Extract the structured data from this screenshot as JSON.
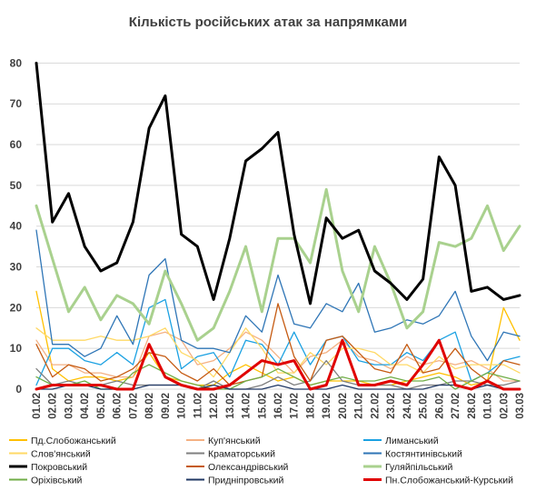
{
  "chart_data": {
    "type": "line",
    "title": "Кількість російських атак за напрямками",
    "xlabel": "",
    "ylabel": "",
    "ylim": [
      0,
      85
    ],
    "yticks": [
      0,
      10,
      20,
      30,
      40,
      50,
      60,
      70,
      80
    ],
    "grid": "horizontal",
    "legend_position": "bottom",
    "x": [
      "01.02",
      "02.02",
      "03.02",
      "04.02",
      "05.02",
      "06.02",
      "07.02",
      "08.02",
      "09.02",
      "10.02",
      "11.02",
      "12.02",
      "13.02",
      "14.02",
      "15.02",
      "16.02",
      "17.02",
      "18.02",
      "19.02",
      "20.02",
      "21.02",
      "22.02",
      "23.02",
      "24.02",
      "25.02",
      "26.02",
      "27.02",
      "28.02",
      "01.03",
      "02.03",
      "03.03"
    ],
    "series": [
      {
        "name": "Пд.Слобожанський",
        "color": "#ffc000",
        "width": 1.3,
        "values": [
          24,
          5,
          2,
          3,
          3,
          2,
          3,
          9,
          3,
          2,
          1,
          1,
          4,
          6,
          4,
          2,
          3,
          1,
          2,
          2,
          2,
          1,
          1,
          2,
          3,
          4,
          3,
          1,
          2,
          20,
          12
        ]
      },
      {
        "name": "Куп'янський",
        "color": "#f4b183",
        "width": 1.3,
        "values": [
          12,
          6,
          6,
          4,
          4,
          3,
          3,
          13,
          14,
          12,
          6,
          7,
          10,
          14,
          12,
          8,
          4,
          8,
          9,
          12,
          8,
          7,
          5,
          8,
          6,
          7,
          6,
          7,
          5,
          2,
          2
        ]
      },
      {
        "name": "Лиманський",
        "color": "#1ba1e2",
        "width": 1.3,
        "values": [
          1,
          10,
          10,
          7,
          6,
          9,
          6,
          20,
          22,
          5,
          8,
          9,
          3,
          12,
          11,
          6,
          14,
          6,
          12,
          13,
          7,
          6,
          6,
          9,
          7,
          12,
          14,
          2,
          4,
          7,
          8
        ]
      },
      {
        "name": "Слов'янський",
        "color": "#ffd966",
        "width": 1.3,
        "values": [
          15,
          12,
          12,
          12,
          13,
          12,
          12,
          13,
          15,
          9,
          7,
          3,
          9,
          15,
          10,
          4,
          4,
          9,
          6,
          10,
          10,
          9,
          6,
          6,
          4,
          8,
          5,
          6,
          6,
          6,
          4
        ]
      },
      {
        "name": "Краматорський",
        "color": "#7f7f7f",
        "width": 1.3,
        "values": [
          5,
          1,
          2,
          1,
          1,
          2,
          1,
          1,
          1,
          1,
          0,
          2,
          0,
          0,
          1,
          3,
          1,
          2,
          7,
          2,
          1,
          1,
          1,
          0,
          1,
          1,
          2,
          2,
          1,
          1,
          2
        ]
      },
      {
        "name": "Костянтинівський",
        "color": "#2e75b6",
        "width": 1.3,
        "values": [
          39,
          11,
          11,
          8,
          10,
          18,
          11,
          28,
          32,
          12,
          10,
          10,
          9,
          18,
          14,
          28,
          16,
          15,
          21,
          19,
          26,
          14,
          15,
          17,
          16,
          18,
          24,
          13,
          7,
          14,
          13
        ]
      },
      {
        "name": "Покровський",
        "color": "#000000",
        "width": 3,
        "values": [
          80,
          41,
          48,
          35,
          29,
          31,
          41,
          64,
          72,
          38,
          35,
          22,
          37,
          56,
          59,
          63,
          38,
          21,
          42,
          37,
          39,
          29,
          26,
          22,
          27,
          57,
          50,
          24,
          25,
          22,
          23
        ]
      },
      {
        "name": "Олександрівський",
        "color": "#c55a11",
        "width": 1.3,
        "values": [
          11,
          3,
          6,
          5,
          2,
          3,
          5,
          9,
          8,
          4,
          2,
          5,
          1,
          2,
          3,
          21,
          8,
          2,
          12,
          13,
          9,
          5,
          4,
          11,
          4,
          5,
          10,
          5,
          2,
          7,
          6
        ]
      },
      {
        "name": "Гуляйпільський",
        "color": "#a9d18e",
        "width": 3,
        "values": [
          45,
          32,
          19,
          25,
          17,
          23,
          21,
          16,
          29,
          21,
          12,
          15,
          24,
          35,
          19,
          37,
          37,
          31,
          49,
          29,
          19,
          35,
          26,
          15,
          19,
          36,
          35,
          37,
          45,
          34,
          40
        ]
      },
      {
        "name": "Оріхівський",
        "color": "#70ad47",
        "width": 1.3,
        "values": [
          3,
          1,
          1,
          2,
          0,
          0,
          4,
          6,
          4,
          2,
          1,
          0,
          0,
          2,
          3,
          5,
          3,
          1,
          2,
          3,
          2,
          2,
          3,
          2,
          2,
          3,
          0,
          2,
          4,
          3,
          2
        ]
      },
      {
        "name": "Придніпровський",
        "color": "#203864",
        "width": 1.3,
        "values": [
          0,
          0,
          1,
          1,
          0,
          0,
          0,
          1,
          1,
          1,
          0,
          1,
          0,
          0,
          0,
          1,
          0,
          0,
          0,
          1,
          0,
          0,
          0,
          0,
          0,
          1,
          1,
          0,
          1,
          0,
          0
        ]
      },
      {
        "name": "Пн.Слобожанський-Курський",
        "color": "#e00000",
        "width": 3,
        "values": [
          0,
          1,
          1,
          1,
          1,
          0,
          0,
          11,
          3,
          1,
          0,
          0,
          1,
          4,
          7,
          6,
          7,
          0,
          1,
          12,
          1,
          1,
          2,
          1,
          6,
          12,
          1,
          0,
          2,
          0,
          0
        ]
      }
    ]
  }
}
